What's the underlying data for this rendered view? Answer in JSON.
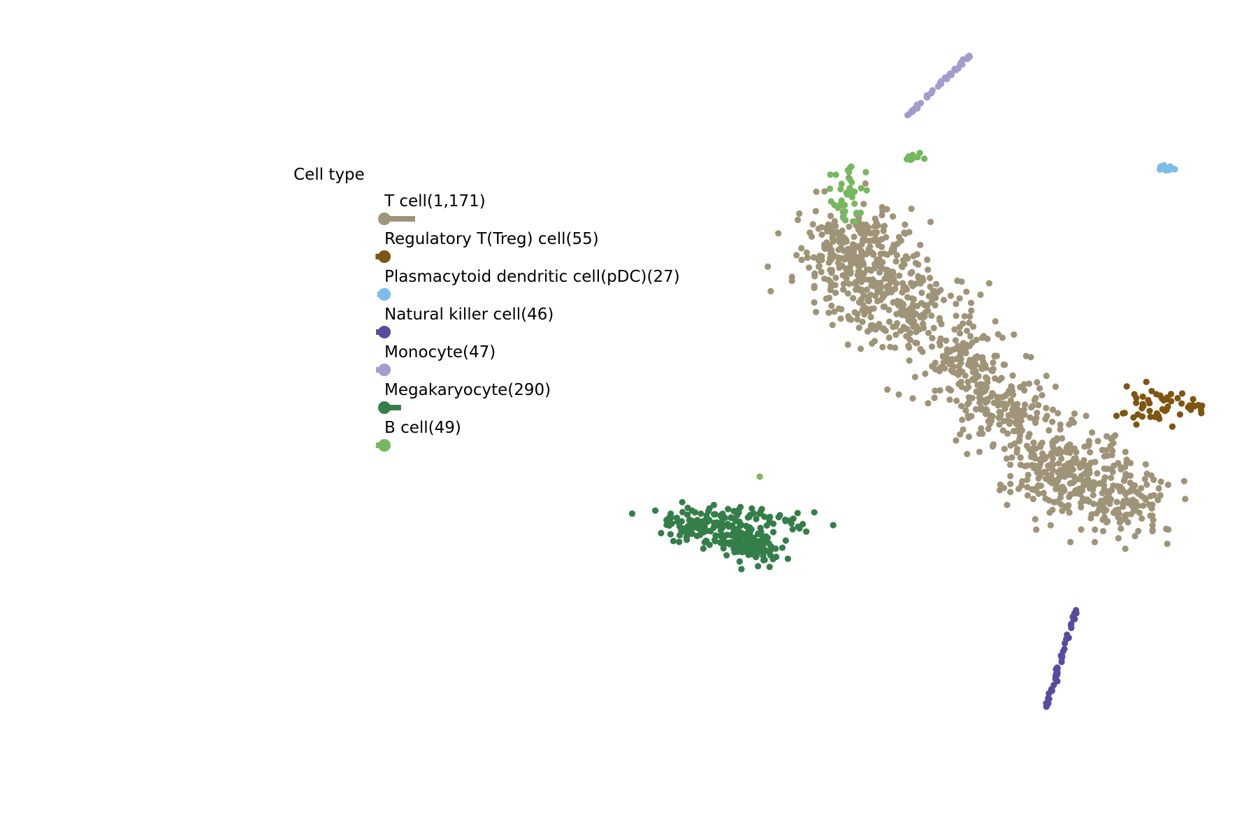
{
  "chart_data": {
    "type": "scatter",
    "title": "",
    "xlabel": "",
    "ylabel": "",
    "axes_visible": false,
    "grid": false,
    "xlim": [
      0,
      100
    ],
    "ylim": [
      0,
      100
    ],
    "legend": {
      "title": "Cell type",
      "placement": "top-left"
    },
    "series": [
      {
        "name": "T cell(1,171)",
        "count": 1171,
        "color": "#a09478",
        "clusters": [
          {
            "cx": 68.0,
            "cy": 69.5,
            "sx": 2.3,
            "sy": 3.0,
            "n": 300
          },
          {
            "cx": 72.0,
            "cy": 63.0,
            "sx": 2.4,
            "sy": 2.4,
            "n": 180
          },
          {
            "cx": 76.5,
            "cy": 57.0,
            "sx": 2.2,
            "sy": 2.2,
            "n": 150
          },
          {
            "cx": 80.5,
            "cy": 51.0,
            "sx": 2.3,
            "sy": 2.2,
            "n": 160
          },
          {
            "cx": 84.5,
            "cy": 44.0,
            "sx": 2.2,
            "sy": 2.2,
            "n": 230
          },
          {
            "cx": 89.0,
            "cy": 40.0,
            "sx": 2.0,
            "sy": 2.0,
            "n": 151
          }
        ]
      },
      {
        "name": "Regulatory T(Treg) cell(55)",
        "count": 55,
        "color": "#7f5511",
        "clusters": [
          {
            "cx": 91.6,
            "cy": 52.0,
            "sx": 1.2,
            "sy": 1.4,
            "n": 43
          },
          {
            "cx": 95.0,
            "cy": 51.5,
            "sx": 0.4,
            "sy": 0.3,
            "n": 12
          }
        ]
      },
      {
        "name": "Plasmacytoid dendritic cell(pDC)(27)",
        "count": 27,
        "color": "#79bde8",
        "clusters": [
          {
            "cx": 92.8,
            "cy": 79.9,
            "sx": 0.35,
            "sy": 0.15,
            "n": 27
          }
        ]
      },
      {
        "name": "Natural killer cell(46)",
        "count": 46,
        "color": "#574ba0",
        "line": {
          "x0": 83.2,
          "y0": 15.8,
          "x1": 85.5,
          "y1": 27.2
        },
        "n": 46
      },
      {
        "name": "Monocyte(47)",
        "count": 47,
        "color": "#a49ccf",
        "line": {
          "x0": 72.0,
          "y0": 86.0,
          "x1": 77.2,
          "y1": 93.5
        },
        "n": 47
      },
      {
        "name": "Megakaryocyte(290)",
        "count": 290,
        "color": "#347e49",
        "clusters": [
          {
            "cx": 56.8,
            "cy": 37.3,
            "sx": 2.1,
            "sy": 1.3,
            "n": 160
          },
          {
            "cx": 60.0,
            "cy": 35.0,
            "sx": 1.0,
            "sy": 0.9,
            "n": 110
          },
          {
            "cx": 62.5,
            "cy": 38.0,
            "sx": 1.2,
            "sy": 0.8,
            "n": 20
          }
        ]
      },
      {
        "name": "B cell(49)",
        "count": 49,
        "color": "#76b85f",
        "clusters": [
          {
            "cx": 67.5,
            "cy": 77.0,
            "sx": 0.6,
            "sy": 1.8,
            "n": 38
          },
          {
            "cx": 72.7,
            "cy": 81.2,
            "sx": 0.4,
            "sy": 0.3,
            "n": 10
          },
          {
            "cx": 60.4,
            "cy": 43.2,
            "sx": 0.01,
            "sy": 0.01,
            "n": 1
          }
        ]
      }
    ]
  }
}
